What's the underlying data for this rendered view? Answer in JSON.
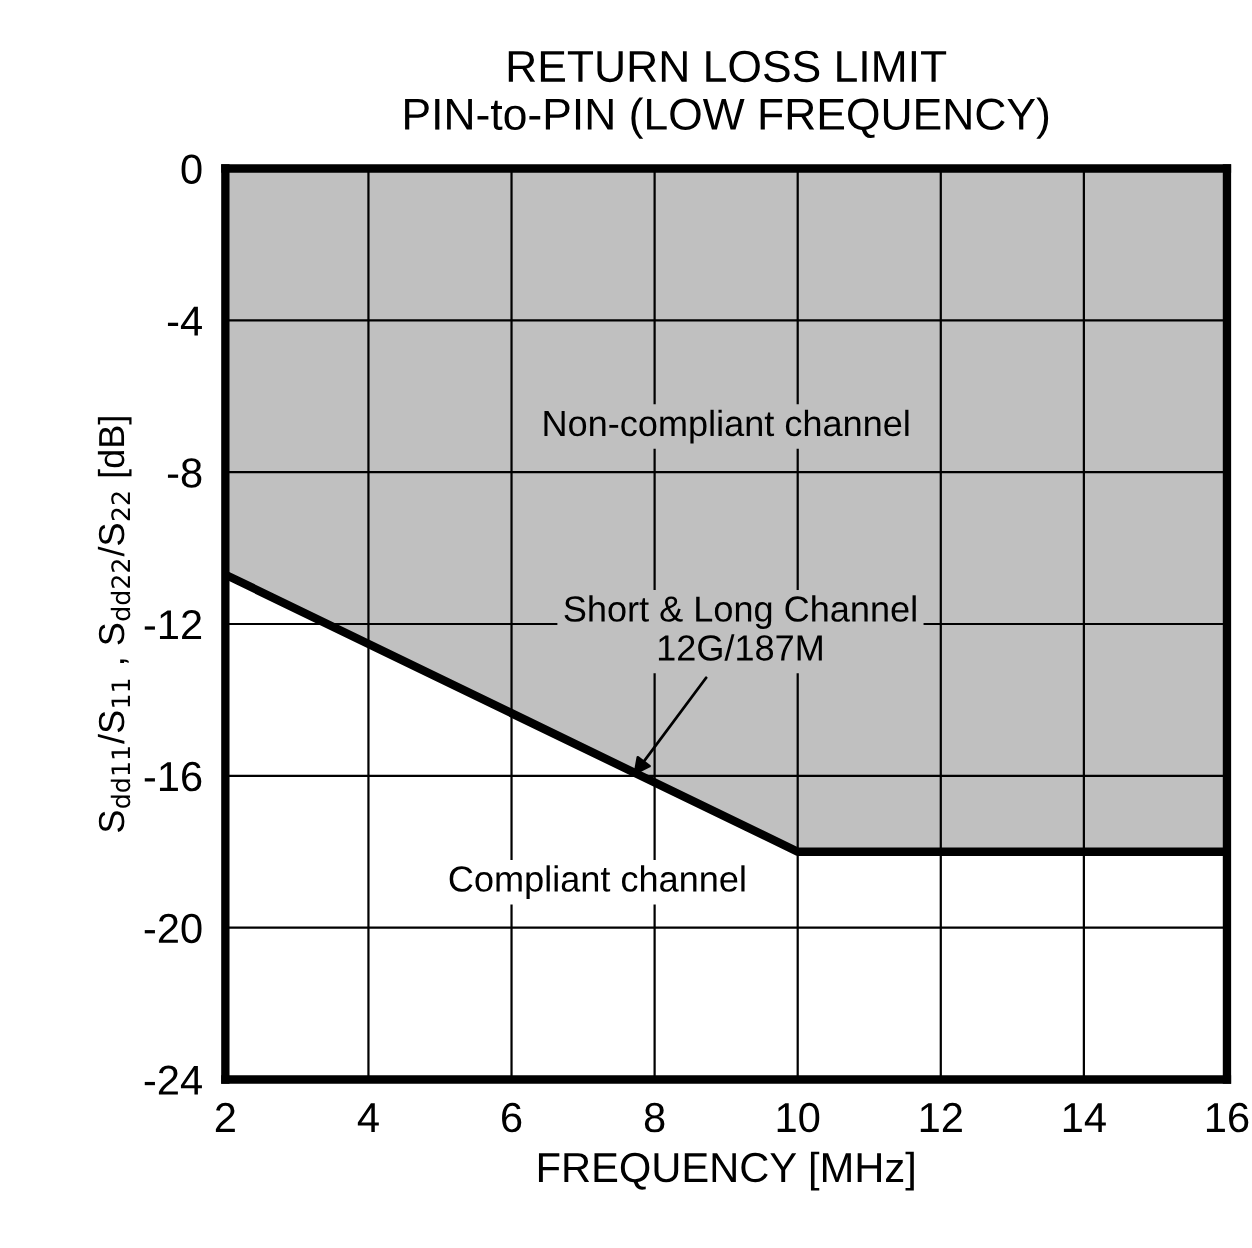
{
  "chart_data": {
    "type": "line",
    "title": "RETURN LOSS LIMIT\nPIN-to-PIN (LOW FREQUENCY)",
    "xlabel": "FREQUENCY [MHz]",
    "ylabel": "S$_{dd11}$/S$_{11}$ , S$_{dd22}$/S$_{22}$ [dB]",
    "series": [
      {
        "color": "#000000",
        "x": [
          2,
          10,
          16
        ],
        "values": [
          -10.7,
          -18,
          -18
        ],
        "lower": [
          -10.7,
          -18,
          -18
        ],
        "upper": [
          0,
          0,
          0
        ]
      }
    ],
    "annotations": [
      "Non-compliant channel",
      "Compliant channel",
      {
        "text": "Short & Long Channel\n12G/187M",
        "x": 7.7,
        "y": -16
      }
    ],
    "xlim": [
      2,
      16
    ],
    "xticks": [
      2,
      4,
      6,
      8,
      10,
      12,
      14,
      16
    ],
    "ylim": [
      -24,
      0
    ],
    "yticks": [
      0,
      -4,
      -8,
      -12,
      -16,
      -20,
      -24
    ],
    "grid": true,
    "line_style": "solid",
    "marker": "none",
    "legend": false
  }
}
